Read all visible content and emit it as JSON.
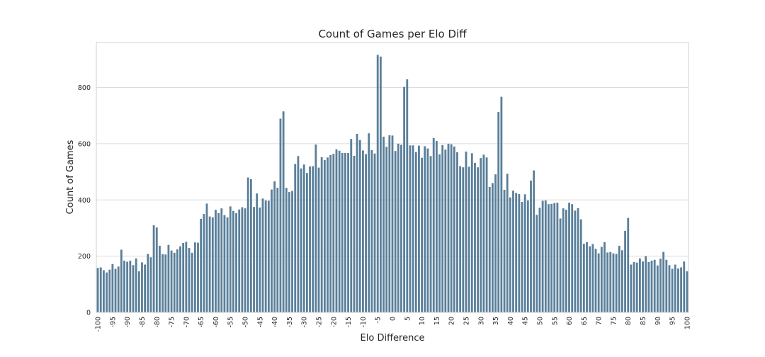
{
  "chart_data": {
    "type": "bar",
    "title": "Count of Games per Elo Diff",
    "xlabel": "Elo Difference",
    "ylabel": "Count of Games",
    "ylim": [
      0,
      960
    ],
    "yticks": [
      0,
      200,
      400,
      600,
      800
    ],
    "grid": true,
    "bar_color": "#5a7f9a",
    "x_start": -100,
    "x_end": 100,
    "tick_step": 5,
    "tick_labels": [
      "-100",
      "-95",
      "-90",
      "-85",
      "-80",
      "-75",
      "-70",
      "-65",
      "-60",
      "-55",
      "-50",
      "-45",
      "-40",
      "-35",
      "-30",
      "-25",
      "-20",
      "-15",
      "-10",
      "-5",
      "0",
      "5",
      "10",
      "15",
      "20",
      "25",
      "30",
      "35",
      "40",
      "45",
      "50",
      "55",
      "60",
      "65",
      "70",
      "75",
      "80",
      "85",
      "90",
      "95",
      "100"
    ],
    "values": [
      158,
      160,
      150,
      142,
      152,
      172,
      155,
      163,
      223,
      184,
      180,
      184,
      168,
      192,
      146,
      178,
      170,
      208,
      196,
      310,
      302,
      237,
      207,
      206,
      240,
      220,
      212,
      224,
      235,
      247,
      251,
      229,
      212,
      249,
      248,
      333,
      350,
      387,
      341,
      338,
      365,
      353,
      370,
      346,
      338,
      377,
      361,
      353,
      366,
      374,
      370,
      480,
      474,
      375,
      423,
      373,
      405,
      398,
      397,
      437,
      466,
      443,
      689,
      715,
      443,
      428,
      432,
      528,
      556,
      512,
      526,
      496,
      519,
      520,
      597,
      515,
      552,
      542,
      551,
      560,
      564,
      580,
      575,
      567,
      567,
      567,
      617,
      557,
      635,
      613,
      576,
      563,
      637,
      577,
      565,
      916,
      910,
      625,
      589,
      630,
      629,
      574,
      600,
      596,
      802,
      829,
      594,
      594,
      570,
      593,
      550,
      591,
      583,
      556,
      620,
      610,
      562,
      595,
      579,
      600,
      598,
      590,
      570,
      520,
      516,
      572,
      518,
      566,
      532,
      516,
      549,
      561,
      551,
      446,
      460,
      491,
      713,
      767,
      436,
      493,
      409,
      433,
      425,
      421,
      393,
      420,
      398,
      469,
      505,
      347,
      372,
      397,
      398,
      385,
      386,
      389,
      390,
      334,
      370,
      365,
      390,
      385,
      362,
      371,
      331,
      244,
      250,
      235,
      243,
      226,
      210,
      233,
      250,
      213,
      215,
      210,
      208,
      237,
      221,
      290,
      336,
      170,
      179,
      177,
      192,
      181,
      200,
      179,
      184,
      187,
      167,
      191,
      215,
      187,
      168,
      155,
      170,
      156,
      160,
      181,
      146
    ]
  }
}
